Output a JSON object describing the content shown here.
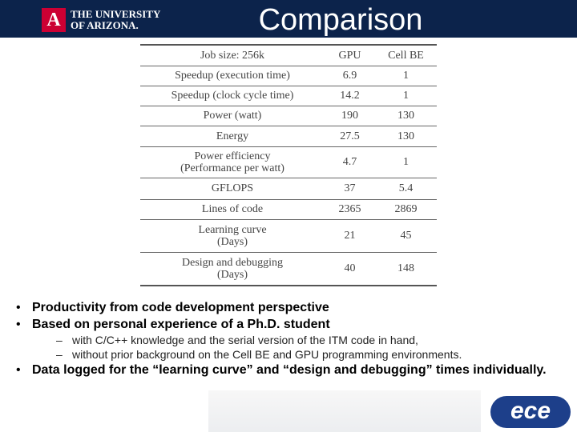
{
  "header": {
    "logo_line1": "THE UNIVERSITY",
    "logo_line2": "OF ARIZONA.",
    "title": "Comparison"
  },
  "table": {
    "header": [
      "Job size: 256k",
      "GPU",
      "Cell BE"
    ],
    "rows": [
      [
        "Speedup (execution time)",
        "6.9",
        "1"
      ],
      [
        "Speedup (clock cycle time)",
        "14.2",
        "1"
      ],
      [
        "Power (watt)",
        "190",
        "130"
      ],
      [
        "Energy",
        "27.5",
        "130"
      ],
      [
        "Power efficiency\n(Performance per watt)",
        "4.7",
        "1"
      ],
      [
        "GFLOPS",
        "37",
        "5.4"
      ],
      [
        "Lines of code",
        "2365",
        "2869"
      ],
      [
        "Learning curve\n(Days)",
        "21",
        "45"
      ],
      [
        "Design and debugging\n(Days)",
        "40",
        "148"
      ]
    ]
  },
  "bullets": [
    {
      "text": "Productivity from code development perspective"
    },
    {
      "text": "Based on personal experience of a Ph.D. student",
      "sub": [
        "with C/C++ knowledge and the serial version of the ITM code in hand,",
        "without  prior background on the Cell BE and GPU programming environments."
      ]
    },
    {
      "text": "Data logged for the “learning curve” and “design and debugging” times individually."
    }
  ],
  "footer": {
    "logo": "ece"
  }
}
